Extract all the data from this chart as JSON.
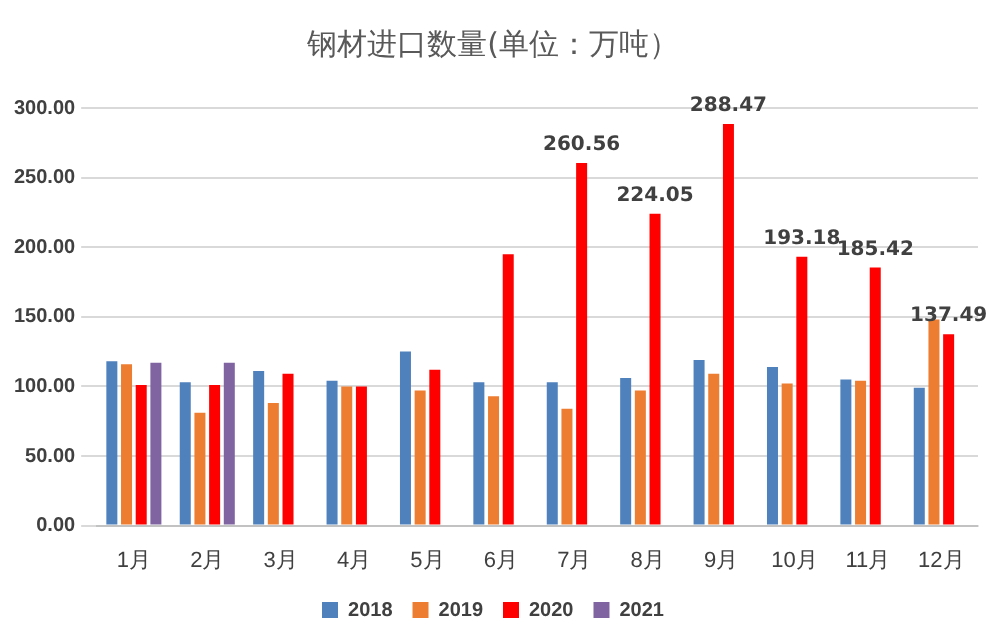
{
  "chart_data": {
    "type": "bar",
    "title": "钢材进口数量(单位：万吨）",
    "categories": [
      "1月",
      "2月",
      "3月",
      "4月",
      "5月",
      "6月",
      "7月",
      "8月",
      "9月",
      "10月",
      "11月",
      "12月"
    ],
    "series": [
      {
        "name": "2018",
        "color": "#4f81bd",
        "values": [
          118,
          103,
          111,
          104,
          125,
          103,
          103,
          106,
          119,
          114,
          105,
          99
        ]
      },
      {
        "name": "2019",
        "color": "#ed7d31",
        "values": [
          116,
          81,
          88,
          100,
          97,
          93,
          84,
          97,
          109,
          102,
          104,
          148
        ]
      },
      {
        "name": "2020",
        "color": "#ff0000",
        "values": [
          101,
          101,
          109,
          100,
          112,
          195,
          260.56,
          224.05,
          288.47,
          193.18,
          185.42,
          137.49
        ],
        "value_labels": [
          null,
          null,
          null,
          null,
          null,
          null,
          "260.56",
          "224.05",
          "288.47",
          "193.18",
          "185.42",
          "137.49"
        ]
      },
      {
        "name": "2021",
        "color": "#8064a2",
        "values": [
          117,
          117,
          null,
          null,
          null,
          null,
          null,
          null,
          null,
          null,
          null,
          null
        ]
      }
    ],
    "ylim": [
      0,
      300
    ],
    "yticks": [
      {
        "value": 0,
        "label": "0.00"
      },
      {
        "value": 50,
        "label": "50.00"
      },
      {
        "value": 100,
        "label": "100.00"
      },
      {
        "value": 150,
        "label": "150.00"
      },
      {
        "value": 200,
        "label": "200.00"
      },
      {
        "value": 250,
        "label": "250.00"
      },
      {
        "value": 300,
        "label": "300.00"
      }
    ],
    "grid": "y",
    "legend": "bottom"
  }
}
